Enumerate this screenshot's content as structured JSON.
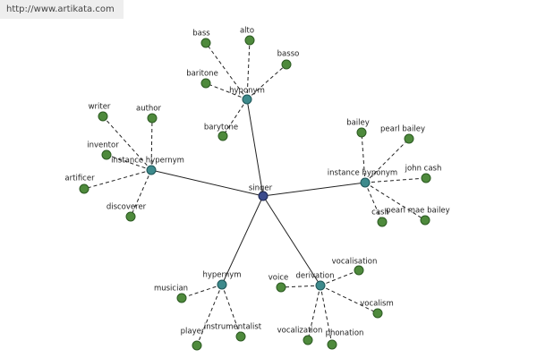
{
  "watermark": "http://www.artikata.com",
  "center": "singer",
  "groups": [
    {
      "label": "hyponym",
      "leaves": [
        "bass",
        "alto",
        "basso",
        "baritone",
        "barytone"
      ]
    },
    {
      "label": "instance hypernym",
      "leaves": [
        "writer",
        "author",
        "inventor",
        "artificer",
        "discoverer"
      ]
    },
    {
      "label": "instance hyponym",
      "leaves": [
        "bailey",
        "pearl bailey",
        "john cash",
        "cash",
        "pearl mae bailey"
      ]
    },
    {
      "label": "hypernym",
      "leaves": [
        "musician",
        "player",
        "instrumentalist"
      ]
    },
    {
      "label": "derivation",
      "leaves": [
        "voice",
        "vocalisation",
        "vocalism",
        "vocalization",
        "phonation"
      ]
    }
  ]
}
